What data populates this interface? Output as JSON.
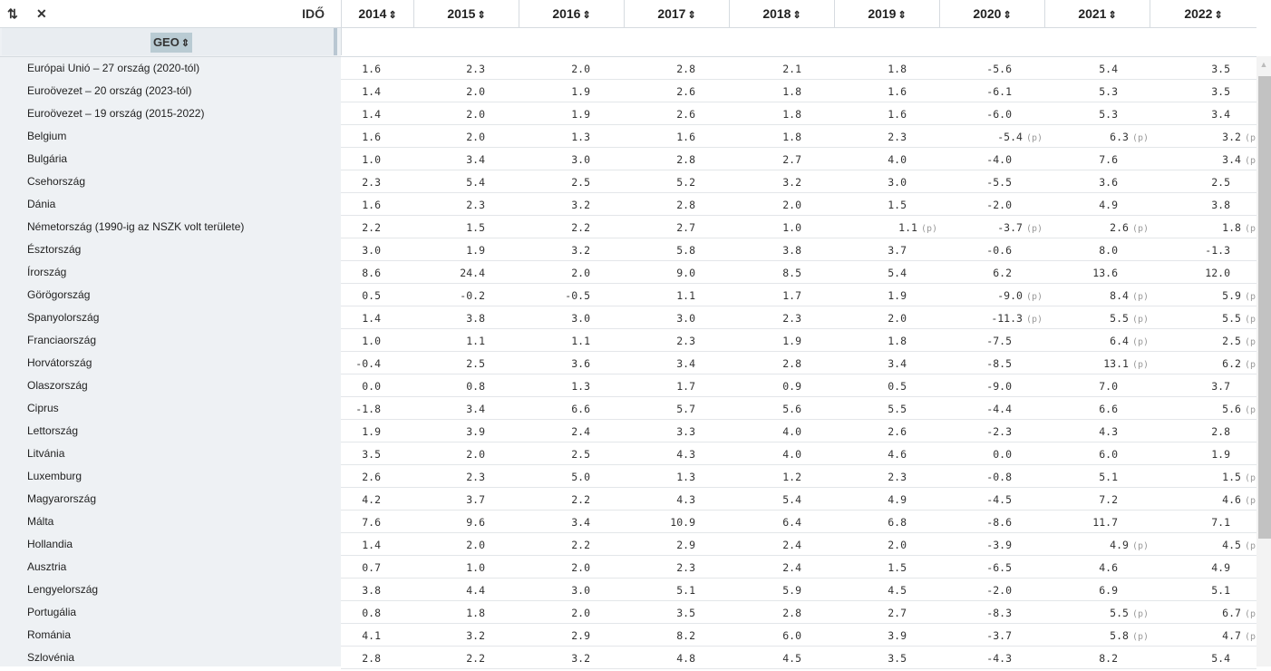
{
  "toolbar": {
    "sort_icon": "⇅",
    "expand_icon": "✕",
    "time_label": "IDŐ",
    "geo_label": "GEO"
  },
  "years": [
    "2014",
    "2015",
    "2016",
    "2017",
    "2018",
    "2019",
    "2020",
    "2021",
    "2022"
  ],
  "sort_glyph": "⇕",
  "rows": [
    {
      "country": "Európai Unió – 27 ország (2020-tól)",
      "values": [
        "1.6",
        "2.3",
        "2.0",
        "2.8",
        "2.1",
        "1.8",
        "-5.6",
        "5.4",
        "3.5"
      ],
      "flags": [
        "",
        "",
        "",
        "",
        "",
        "",
        "",
        "",
        ""
      ]
    },
    {
      "country": "Euroövezet – 20 ország (2023-tól)",
      "values": [
        "1.4",
        "2.0",
        "1.9",
        "2.6",
        "1.8",
        "1.6",
        "-6.1",
        "5.3",
        "3.5"
      ],
      "flags": [
        "",
        "",
        "",
        "",
        "",
        "",
        "",
        "",
        ""
      ]
    },
    {
      "country": "Euroövezet – 19 ország (2015-2022)",
      "values": [
        "1.4",
        "2.0",
        "1.9",
        "2.6",
        "1.8",
        "1.6",
        "-6.0",
        "5.3",
        "3.4"
      ],
      "flags": [
        "",
        "",
        "",
        "",
        "",
        "",
        "",
        "",
        ""
      ]
    },
    {
      "country": "Belgium",
      "values": [
        "1.6",
        "2.0",
        "1.3",
        "1.6",
        "1.8",
        "2.3",
        "-5.4",
        "6.3",
        "3.2"
      ],
      "flags": [
        "",
        "",
        "",
        "",
        "",
        "",
        "(p)",
        "(p)",
        "(p)"
      ]
    },
    {
      "country": "Bulgária",
      "values": [
        "1.0",
        "3.4",
        "3.0",
        "2.8",
        "2.7",
        "4.0",
        "-4.0",
        "7.6",
        "3.4"
      ],
      "flags": [
        "",
        "",
        "",
        "",
        "",
        "",
        "",
        "",
        "(p)"
      ]
    },
    {
      "country": "Csehország",
      "values": [
        "2.3",
        "5.4",
        "2.5",
        "5.2",
        "3.2",
        "3.0",
        "-5.5",
        "3.6",
        "2.5"
      ],
      "flags": [
        "",
        "",
        "",
        "",
        "",
        "",
        "",
        "",
        ""
      ]
    },
    {
      "country": "Dánia",
      "values": [
        "1.6",
        "2.3",
        "3.2",
        "2.8",
        "2.0",
        "1.5",
        "-2.0",
        "4.9",
        "3.8"
      ],
      "flags": [
        "",
        "",
        "",
        "",
        "",
        "",
        "",
        "",
        ""
      ]
    },
    {
      "country": "Németország (1990-ig az NSZK volt területe)",
      "values": [
        "2.2",
        "1.5",
        "2.2",
        "2.7",
        "1.0",
        "1.1",
        "-3.7",
        "2.6",
        "1.8"
      ],
      "flags": [
        "",
        "",
        "",
        "",
        "",
        "(p)",
        "(p)",
        "(p)",
        "(p)"
      ]
    },
    {
      "country": "Észtország",
      "values": [
        "3.0",
        "1.9",
        "3.2",
        "5.8",
        "3.8",
        "3.7",
        "-0.6",
        "8.0",
        "-1.3"
      ],
      "flags": [
        "",
        "",
        "",
        "",
        "",
        "",
        "",
        "",
        ""
      ]
    },
    {
      "country": "Írország",
      "values": [
        "8.6",
        "24.4",
        "2.0",
        "9.0",
        "8.5",
        "5.4",
        "6.2",
        "13.6",
        "12.0"
      ],
      "flags": [
        "",
        "",
        "",
        "",
        "",
        "",
        "",
        "",
        ""
      ]
    },
    {
      "country": "Görögország",
      "values": [
        "0.5",
        "-0.2",
        "-0.5",
        "1.1",
        "1.7",
        "1.9",
        "-9.0",
        "8.4",
        "5.9"
      ],
      "flags": [
        "",
        "",
        "",
        "",
        "",
        "",
        "(p)",
        "(p)",
        "(p)"
      ]
    },
    {
      "country": "Spanyolország",
      "values": [
        "1.4",
        "3.8",
        "3.0",
        "3.0",
        "2.3",
        "2.0",
        "-11.3",
        "5.5",
        "5.5"
      ],
      "flags": [
        "",
        "",
        "",
        "",
        "",
        "",
        "(p)",
        "(p)",
        "(p)"
      ]
    },
    {
      "country": "Franciaország",
      "values": [
        "1.0",
        "1.1",
        "1.1",
        "2.3",
        "1.9",
        "1.8",
        "-7.5",
        "6.4",
        "2.5"
      ],
      "flags": [
        "",
        "",
        "",
        "",
        "",
        "",
        "",
        "(p)",
        "(p)"
      ]
    },
    {
      "country": "Horvátország",
      "values": [
        "-0.4",
        "2.5",
        "3.6",
        "3.4",
        "2.8",
        "3.4",
        "-8.5",
        "13.1",
        "6.2"
      ],
      "flags": [
        "",
        "",
        "",
        "",
        "",
        "",
        "",
        "(p)",
        "(p)"
      ]
    },
    {
      "country": "Olaszország",
      "values": [
        "0.0",
        "0.8",
        "1.3",
        "1.7",
        "0.9",
        "0.5",
        "-9.0",
        "7.0",
        "3.7"
      ],
      "flags": [
        "",
        "",
        "",
        "",
        "",
        "",
        "",
        "",
        ""
      ]
    },
    {
      "country": "Ciprus",
      "values": [
        "-1.8",
        "3.4",
        "6.6",
        "5.7",
        "5.6",
        "5.5",
        "-4.4",
        "6.6",
        "5.6"
      ],
      "flags": [
        "",
        "",
        "",
        "",
        "",
        "",
        "",
        "",
        "(p)"
      ]
    },
    {
      "country": "Lettország",
      "values": [
        "1.9",
        "3.9",
        "2.4",
        "3.3",
        "4.0",
        "2.6",
        "-2.3",
        "4.3",
        "2.8"
      ],
      "flags": [
        "",
        "",
        "",
        "",
        "",
        "",
        "",
        "",
        ""
      ]
    },
    {
      "country": "Litvánia",
      "values": [
        "3.5",
        "2.0",
        "2.5",
        "4.3",
        "4.0",
        "4.6",
        "0.0",
        "6.0",
        "1.9"
      ],
      "flags": [
        "",
        "",
        "",
        "",
        "",
        "",
        "",
        "",
        ""
      ]
    },
    {
      "country": "Luxemburg",
      "values": [
        "2.6",
        "2.3",
        "5.0",
        "1.3",
        "1.2",
        "2.3",
        "-0.8",
        "5.1",
        "1.5"
      ],
      "flags": [
        "",
        "",
        "",
        "",
        "",
        "",
        "",
        "",
        "(p)"
      ]
    },
    {
      "country": "Magyarország",
      "values": [
        "4.2",
        "3.7",
        "2.2",
        "4.3",
        "5.4",
        "4.9",
        "-4.5",
        "7.2",
        "4.6"
      ],
      "flags": [
        "",
        "",
        "",
        "",
        "",
        "",
        "",
        "",
        "(p)"
      ]
    },
    {
      "country": "Málta",
      "values": [
        "7.6",
        "9.6",
        "3.4",
        "10.9",
        "6.4",
        "6.8",
        "-8.6",
        "11.7",
        "7.1"
      ],
      "flags": [
        "",
        "",
        "",
        "",
        "",
        "",
        "",
        "",
        ""
      ]
    },
    {
      "country": "Hollandia",
      "values": [
        "1.4",
        "2.0",
        "2.2",
        "2.9",
        "2.4",
        "2.0",
        "-3.9",
        "4.9",
        "4.5"
      ],
      "flags": [
        "",
        "",
        "",
        "",
        "",
        "",
        "",
        "(p)",
        "(p)"
      ]
    },
    {
      "country": "Ausztria",
      "values": [
        "0.7",
        "1.0",
        "2.0",
        "2.3",
        "2.4",
        "1.5",
        "-6.5",
        "4.6",
        "4.9"
      ],
      "flags": [
        "",
        "",
        "",
        "",
        "",
        "",
        "",
        "",
        ""
      ]
    },
    {
      "country": "Lengyelország",
      "values": [
        "3.8",
        "4.4",
        "3.0",
        "5.1",
        "5.9",
        "4.5",
        "-2.0",
        "6.9",
        "5.1"
      ],
      "flags": [
        "",
        "",
        "",
        "",
        "",
        "",
        "",
        "",
        ""
      ]
    },
    {
      "country": "Portugália",
      "values": [
        "0.8",
        "1.8",
        "2.0",
        "3.5",
        "2.8",
        "2.7",
        "-8.3",
        "5.5",
        "6.7"
      ],
      "flags": [
        "",
        "",
        "",
        "",
        "",
        "",
        "",
        "(p)",
        "(p)"
      ]
    },
    {
      "country": "Románia",
      "values": [
        "4.1",
        "3.2",
        "2.9",
        "8.2",
        "6.0",
        "3.9",
        "-3.7",
        "5.8",
        "4.7"
      ],
      "flags": [
        "",
        "",
        "",
        "",
        "",
        "",
        "",
        "(p)",
        "(p)"
      ]
    },
    {
      "country": "Szlovénia",
      "values": [
        "2.8",
        "2.2",
        "3.2",
        "4.8",
        "4.5",
        "3.5",
        "-4.3",
        "8.2",
        "5.4"
      ],
      "flags": [
        "",
        "",
        "",
        "",
        "",
        "",
        "",
        "",
        ""
      ]
    }
  ]
}
